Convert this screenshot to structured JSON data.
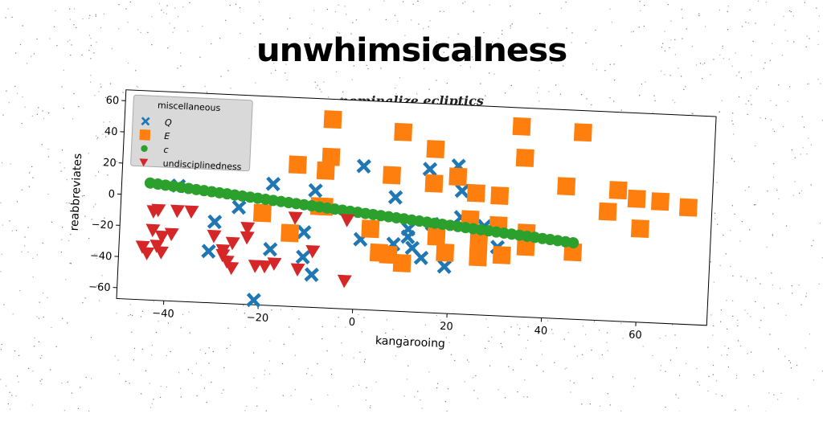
{
  "title": "unwhimsicalness",
  "subtitle": "nominalize ecliptics",
  "chart_data": {
    "type": "scatter",
    "xlabel": "kangarooing",
    "ylabel": "reabbreviates",
    "xlim": [
      -50,
      75
    ],
    "ylim": [
      -67,
      67
    ],
    "xticks": [
      -40,
      -20,
      0,
      20,
      40,
      60
    ],
    "yticks": [
      -60,
      -40,
      -20,
      0,
      20,
      40,
      60
    ],
    "grid": false,
    "legend": {
      "title": "miscellaneous",
      "placement": "upper-left"
    },
    "series": [
      {
        "name": "Q",
        "marker": "x-filled",
        "color": "#1f77b4",
        "points": [
          [
            -38,
            7
          ],
          [
            -30,
            -15
          ],
          [
            -31,
            -34
          ],
          [
            -25,
            -5
          ],
          [
            -21,
            -64
          ],
          [
            -18,
            11
          ],
          [
            -18,
            -31
          ],
          [
            -11,
            -19
          ],
          [
            -11,
            -35
          ],
          [
            -9,
            8
          ],
          [
            -9,
            -46
          ],
          [
            1,
            25
          ],
          [
            1,
            -22
          ],
          [
            8,
            6
          ],
          [
            8,
            -24
          ],
          [
            11,
            -19
          ],
          [
            12,
            -26
          ],
          [
            14,
            -32
          ],
          [
            15,
            25
          ],
          [
            16,
            -10
          ],
          [
            19,
            -37
          ],
          [
            21,
            28
          ],
          [
            22,
            12
          ],
          [
            22,
            -5
          ],
          [
            27,
            -10
          ],
          [
            30,
            -23
          ],
          [
            11,
            -14
          ]
        ]
      },
      {
        "name": "E",
        "marker": "square",
        "color": "#ff7f0e",
        "points": [
          [
            -6,
            54
          ],
          [
            -6,
            30
          ],
          [
            -7,
            21
          ],
          [
            -13,
            24
          ],
          [
            -20,
            -8
          ],
          [
            -14,
            -20
          ],
          [
            -8,
            -2
          ],
          [
            3,
            -15
          ],
          [
            5,
            -30
          ],
          [
            7,
            20
          ],
          [
            7,
            -31
          ],
          [
            9,
            48
          ],
          [
            10,
            -36
          ],
          [
            16,
            38
          ],
          [
            16,
            16
          ],
          [
            17,
            -18
          ],
          [
            19,
            -28
          ],
          [
            21,
            21
          ],
          [
            24,
            -6
          ],
          [
            25,
            11
          ],
          [
            26,
            -20
          ],
          [
            26,
            -30
          ],
          [
            30,
            10
          ],
          [
            30,
            -9
          ],
          [
            31,
            -28
          ],
          [
            34,
            55
          ],
          [
            35,
            35
          ],
          [
            36,
            -13
          ],
          [
            36,
            -22
          ],
          [
            44,
            18
          ],
          [
            47,
            53
          ],
          [
            46,
            -24
          ],
          [
            53,
            3
          ],
          [
            55,
            17
          ],
          [
            59,
            12
          ],
          [
            60,
            -7
          ],
          [
            64,
            11
          ],
          [
            70,
            8
          ],
          [
            -7,
            -2
          ]
        ]
      },
      {
        "name": "c",
        "marker": "circle",
        "color": "#2ca02c",
        "line": {
          "x_start": -44,
          "y_start": 8,
          "x_end": 46,
          "y_end": -18,
          "count": 56
        }
      },
      {
        "name": "undisciplinedness",
        "marker": "triangle-down",
        "color": "#d62728",
        "points": [
          [
            -45,
            -33
          ],
          [
            -44,
            -37
          ],
          [
            -43,
            -10
          ],
          [
            -43,
            -22
          ],
          [
            -42,
            -9
          ],
          [
            -42,
            -32
          ],
          [
            -41,
            -26
          ],
          [
            -41,
            -36
          ],
          [
            -39,
            -24
          ],
          [
            -38,
            -9
          ],
          [
            -35,
            -9
          ],
          [
            -30,
            -24
          ],
          [
            -28,
            -33
          ],
          [
            -28,
            -36
          ],
          [
            -27,
            -40
          ],
          [
            -26,
            -44
          ],
          [
            -23,
            -18
          ],
          [
            -23,
            -24
          ],
          [
            -21,
            -42
          ],
          [
            -19,
            -42
          ],
          [
            -17,
            -40
          ],
          [
            -13,
            -10
          ],
          [
            -12,
            -43
          ],
          [
            -9,
            -31
          ],
          [
            -2,
            -49
          ],
          [
            -2,
            -10
          ],
          [
            -26,
            -28
          ]
        ]
      }
    ]
  }
}
